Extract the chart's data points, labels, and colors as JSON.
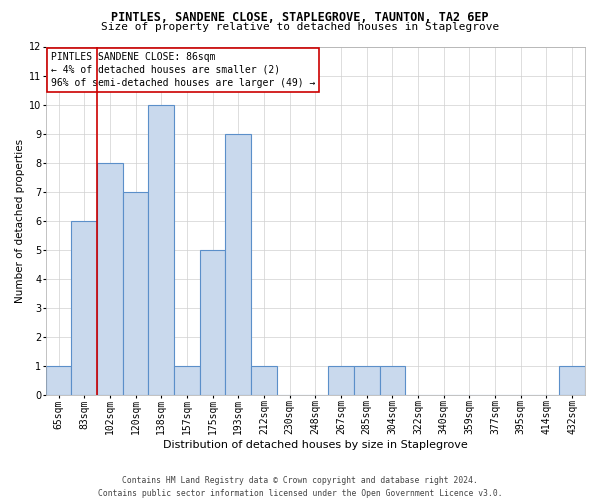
{
  "title": "PINTLES, SANDENE CLOSE, STAPLEGROVE, TAUNTON, TA2 6EP",
  "subtitle": "Size of property relative to detached houses in Staplegrove",
  "xlabel": "Distribution of detached houses by size in Staplegrove",
  "ylabel": "Number of detached properties",
  "categories": [
    "65sqm",
    "83sqm",
    "102sqm",
    "120sqm",
    "138sqm",
    "157sqm",
    "175sqm",
    "193sqm",
    "212sqm",
    "230sqm",
    "248sqm",
    "267sqm",
    "285sqm",
    "304sqm",
    "322sqm",
    "340sqm",
    "359sqm",
    "377sqm",
    "395sqm",
    "414sqm",
    "432sqm"
  ],
  "values": [
    1,
    6,
    8,
    7,
    10,
    1,
    5,
    9,
    1,
    0,
    0,
    1,
    1,
    1,
    0,
    0,
    0,
    0,
    0,
    0,
    1
  ],
  "bar_color": "#c9d9ed",
  "bar_edgecolor": "#5b8fc9",
  "bar_linewidth": 0.8,
  "grid_color": "#d0d0d0",
  "ylim": [
    0,
    12
  ],
  "yticks": [
    0,
    1,
    2,
    3,
    4,
    5,
    6,
    7,
    8,
    9,
    10,
    11,
    12
  ],
  "property_index": 1,
  "property_label": "PINTLES SANDENE CLOSE: 86sqm",
  "annotation_line1": "← 4% of detached houses are smaller (2)",
  "annotation_line2": "96% of semi-detached houses are larger (49) →",
  "vline_color": "#cc0000",
  "annotation_box_edgecolor": "#cc0000",
  "footer_line1": "Contains HM Land Registry data © Crown copyright and database right 2024.",
  "footer_line2": "Contains public sector information licensed under the Open Government Licence v3.0.",
  "background_color": "#ffffff",
  "axes_background": "#ffffff",
  "title_fontsize": 8.5,
  "subtitle_fontsize": 8.0,
  "xlabel_fontsize": 8.0,
  "ylabel_fontsize": 7.5,
  "tick_fontsize": 7.0,
  "annotation_fontsize": 7.0,
  "footer_fontsize": 5.8
}
